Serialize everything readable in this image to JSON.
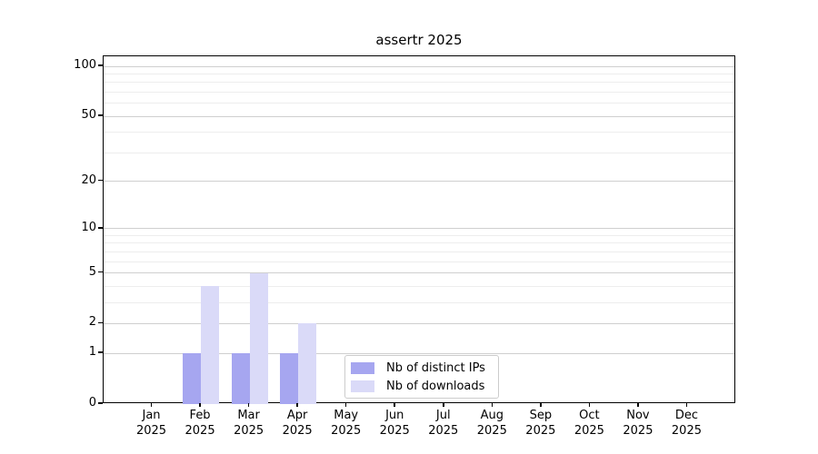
{
  "chart_data": {
    "type": "bar",
    "title": "assertr 2025",
    "x_months": [
      "Jan",
      "Feb",
      "Mar",
      "Apr",
      "May",
      "Jun",
      "Jul",
      "Aug",
      "Sep",
      "Oct",
      "Nov",
      "Dec"
    ],
    "x_year": "2025",
    "series": [
      {
        "name": "Nb of distinct IPs",
        "slug": "distinct-ips",
        "color": "#a6a6f0",
        "values": [
          0,
          1,
          1,
          1,
          0,
          0,
          0,
          0,
          0,
          0,
          0,
          0
        ]
      },
      {
        "name": "Nb of downloads",
        "slug": "downloads",
        "color": "#dadaf8",
        "values": [
          0,
          4,
          5,
          2,
          0,
          0,
          0,
          0,
          0,
          0,
          0,
          0
        ]
      }
    ],
    "yscale": "log1p",
    "y_major_ticks": [
      0,
      1,
      2,
      5,
      10,
      20,
      50,
      100
    ],
    "y_minor_gridlines": [
      3,
      4,
      6,
      7,
      8,
      9,
      30,
      40,
      60,
      70,
      80,
      90
    ],
    "ylim": [
      0,
      115
    ],
    "grid": "horizontal",
    "legend_position": "inside-bottom-center"
  },
  "colors": {
    "major_grid": "#cfcfcf",
    "minor_grid": "#ededed",
    "axis": "#000000",
    "legend_border": "#cccccc",
    "background": "#ffffff"
  }
}
